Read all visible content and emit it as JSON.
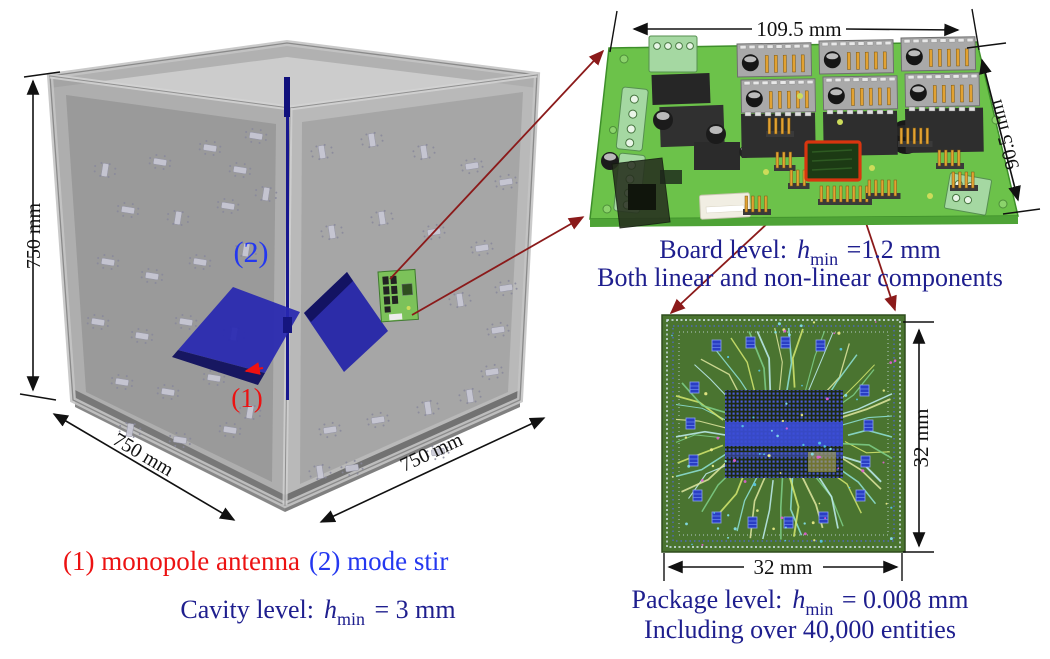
{
  "cavity": {
    "dim_height_label": "750 mm",
    "dim_depth_label": "750 mm",
    "dim_width_label": "750 mm",
    "stirrer_tag": "(2)",
    "antenna_tag": "(1)",
    "legend_antenna": "(1) monopole antenna",
    "legend_stirrer": "(2) mode stir",
    "caption": {
      "prefix": "Cavity level:",
      "symbol": "h",
      "subscript": "min",
      "value": " = 3 mm"
    }
  },
  "board": {
    "dim_width_label": "109.5 mm",
    "dim_height_label": "90.5 mm",
    "caption": {
      "prefix": "Board level:",
      "symbol": "h",
      "subscript": "min",
      "value": " =1.2 mm"
    },
    "caption_line2": "Both linear and non-linear components"
  },
  "package": {
    "dim_height_label": "32 mm",
    "dim_width_label": "32 mm",
    "caption": {
      "prefix": "Package level:",
      "symbol": "h",
      "subscript": "min",
      "value": " = 0.008 mm"
    },
    "caption_line2": "Including over 40,000 entities"
  },
  "colors": {
    "navy": "#1e1e8e",
    "red": "#ec1212",
    "blue": "#2438f0",
    "dark_red": "#8b1a1a",
    "dimension_black": "#111111",
    "cavity_gray": "#9c9c9c",
    "stirrer_blue": "#2626ae",
    "board_green": "#6cc24a",
    "package_green": "#4a7430",
    "chip_highlight_red": "#d8350f"
  }
}
